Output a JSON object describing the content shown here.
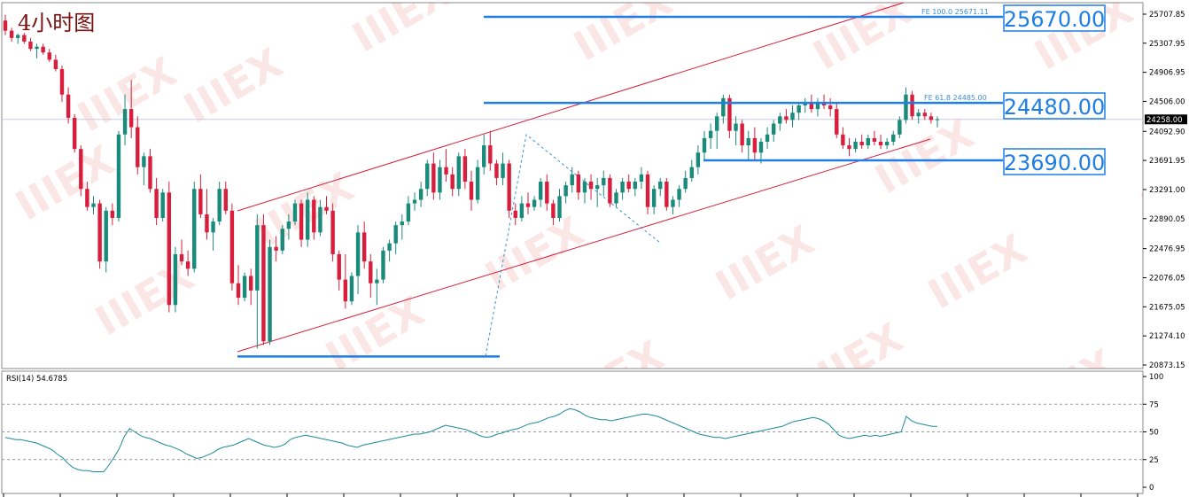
{
  "chart_data": [
    {
      "type": "candlestick",
      "title": "4小时图",
      "colors": {
        "up": "#1a8a7a",
        "down": "#d81e3c",
        "channel": "#d81e3c",
        "level": "#1e7ee6",
        "fib": "#3a8fd6"
      },
      "ylim": [
        20873.15,
        25707.85
      ],
      "y_ticks": [
        "25707.85",
        "25307.95",
        "24906.95",
        "24506.00",
        "24092.90",
        "23691.95",
        "23291.00",
        "22890.05",
        "22476.95",
        "22076.05",
        "21675.05",
        "21274.10",
        "20873.15"
      ],
      "current_price": "24258.00",
      "candles": [
        [
          25620,
          25700,
          25420,
          25480
        ],
        [
          25480,
          25520,
          25330,
          25380
        ],
        [
          25380,
          25440,
          25300,
          25420
        ],
        [
          25420,
          25450,
          25300,
          25330
        ],
        [
          25330,
          25380,
          25200,
          25230
        ],
        [
          25230,
          25300,
          25100,
          25260
        ],
        [
          25260,
          25300,
          25150,
          25180
        ],
        [
          25180,
          25230,
          25050,
          25080
        ],
        [
          25080,
          25150,
          24920,
          24950
        ],
        [
          24950,
          25000,
          24500,
          24600
        ],
        [
          24600,
          24700,
          24200,
          24280
        ],
        [
          24280,
          24330,
          23800,
          23850
        ],
        [
          23850,
          23900,
          23200,
          23300
        ],
        [
          23300,
          23400,
          23000,
          23050
        ],
        [
          23050,
          23200,
          22950,
          23100
        ],
        [
          23100,
          23150,
          22200,
          22300
        ],
        [
          22300,
          23050,
          22150,
          23000
        ],
        [
          23000,
          23100,
          22800,
          22900
        ],
        [
          22900,
          24100,
          22850,
          24050
        ],
        [
          24050,
          24600,
          23900,
          24400
        ],
        [
          24400,
          24800,
          24000,
          24150
        ],
        [
          24150,
          24300,
          23500,
          23600
        ],
        [
          23600,
          23800,
          23350,
          23750
        ],
        [
          23750,
          23850,
          23250,
          23300
        ],
        [
          23300,
          23450,
          22800,
          22900
        ],
        [
          22900,
          23300,
          22850,
          23250
        ],
        [
          23250,
          23400,
          21600,
          21700
        ],
        [
          21700,
          22500,
          21600,
          22400
        ],
        [
          22400,
          22600,
          22250,
          22300
        ],
        [
          22300,
          22450,
          22100,
          22200
        ],
        [
          22200,
          23400,
          22150,
          23300
        ],
        [
          23300,
          23500,
          22900,
          22950
        ],
        [
          22950,
          23300,
          22600,
          22700
        ],
        [
          22700,
          22900,
          22450,
          22850
        ],
        [
          22850,
          23400,
          22800,
          23300
        ],
        [
          23300,
          23400,
          22950,
          23000
        ],
        [
          23000,
          23100,
          21900,
          22000
        ],
        [
          22000,
          22250,
          21700,
          21800
        ],
        [
          21800,
          22150,
          21750,
          22100
        ],
        [
          22100,
          22200,
          21700,
          21900
        ],
        [
          21900,
          22950,
          21100,
          22800
        ],
        [
          22800,
          22950,
          21150,
          21200
        ],
        [
          21200,
          22600,
          21150,
          22500
        ],
        [
          22500,
          22650,
          22300,
          22450
        ],
        [
          22450,
          22800,
          22400,
          22750
        ],
        [
          22750,
          22950,
          22600,
          22850
        ],
        [
          22850,
          23150,
          22800,
          23100
        ],
        [
          23100,
          23150,
          22500,
          22600
        ],
        [
          22600,
          23250,
          22500,
          23150
        ],
        [
          23150,
          23200,
          22600,
          22700
        ],
        [
          22700,
          23150,
          22650,
          23050
        ],
        [
          23050,
          23200,
          22950,
          23000
        ],
        [
          23000,
          23100,
          22300,
          22400
        ],
        [
          22400,
          22450,
          21900,
          22050
        ],
        [
          22050,
          22400,
          21650,
          21750
        ],
        [
          21750,
          22150,
          21700,
          22100
        ],
        [
          22100,
          22800,
          21850,
          22700
        ],
        [
          22700,
          22850,
          22200,
          22300
        ],
        [
          22300,
          22400,
          21800,
          22000
        ],
        [
          22000,
          22200,
          21700,
          22050
        ],
        [
          22050,
          22500,
          22000,
          22450
        ],
        [
          22450,
          22600,
          22300,
          22550
        ],
        [
          22550,
          22850,
          22400,
          22800
        ],
        [
          22800,
          22950,
          22600,
          22850
        ],
        [
          22850,
          23200,
          22800,
          23100
        ],
        [
          23100,
          23250,
          23000,
          23150
        ],
        [
          23150,
          23400,
          23050,
          23300
        ],
        [
          23300,
          23700,
          23200,
          23650
        ],
        [
          23650,
          23800,
          23150,
          23250
        ],
        [
          23250,
          23700,
          23150,
          23600
        ],
        [
          23600,
          23850,
          23400,
          23500
        ],
        [
          23500,
          23600,
          23200,
          23300
        ],
        [
          23300,
          23800,
          23200,
          23750
        ],
        [
          23750,
          23850,
          23300,
          23400
        ],
        [
          23400,
          23550,
          23000,
          23150
        ],
        [
          23150,
          23700,
          23100,
          23600
        ],
        [
          23600,
          24050,
          23500,
          23900
        ],
        [
          23900,
          24100,
          23550,
          23650
        ],
        [
          23650,
          23700,
          23350,
          23450
        ],
        [
          23450,
          23800,
          23350,
          23650
        ],
        [
          23650,
          23700,
          22900,
          23000
        ],
        [
          23000,
          23100,
          22800,
          22900
        ],
        [
          22900,
          23200,
          22850,
          23100
        ],
        [
          23100,
          23250,
          22950,
          23050
        ],
        [
          23050,
          23200,
          23000,
          23150
        ],
        [
          23150,
          23450,
          23050,
          23400
        ],
        [
          23400,
          23500,
          23000,
          23100
        ],
        [
          23100,
          23150,
          22800,
          22900
        ],
        [
          22900,
          23300,
          22850,
          23200
        ],
        [
          23200,
          23400,
          23100,
          23350
        ],
        [
          23350,
          23600,
          23250,
          23500
        ],
        [
          23500,
          23550,
          23150,
          23250
        ],
        [
          23250,
          23450,
          23100,
          23400
        ],
        [
          23400,
          23500,
          23150,
          23300
        ],
        [
          23300,
          23450,
          23050,
          23350
        ],
        [
          23350,
          23550,
          23200,
          23450
        ],
        [
          23450,
          23500,
          23050,
          23100
        ],
        [
          23100,
          23300,
          23050,
          23250
        ],
        [
          23250,
          23450,
          23150,
          23400
        ],
        [
          23400,
          23500,
          23250,
          23300
        ],
        [
          23300,
          23450,
          23200,
          23400
        ],
        [
          23400,
          23600,
          23300,
          23500
        ],
        [
          23500,
          23550,
          22950,
          23050
        ],
        [
          23050,
          23350,
          22950,
          23300
        ],
        [
          23300,
          23450,
          23200,
          23400
        ],
        [
          23400,
          23450,
          23000,
          23050
        ],
        [
          23050,
          23200,
          22950,
          23150
        ],
        [
          23150,
          23350,
          23050,
          23300
        ],
        [
          23300,
          23550,
          23250,
          23450
        ],
        [
          23450,
          23700,
          23400,
          23600
        ],
        [
          23600,
          23900,
          23500,
          23800
        ],
        [
          23800,
          24100,
          23700,
          24000
        ],
        [
          24000,
          24200,
          23850,
          24100
        ],
        [
          24100,
          24350,
          23850,
          24300
        ],
        [
          24300,
          24600,
          24200,
          24550
        ],
        [
          24550,
          24600,
          24000,
          24100
        ],
        [
          24100,
          24300,
          23900,
          24200
        ],
        [
          24200,
          24250,
          23800,
          23900
        ],
        [
          23900,
          24100,
          23700,
          24000
        ],
        [
          24000,
          24150,
          23700,
          23800
        ],
        [
          23800,
          24000,
          23650,
          23950
        ],
        [
          23950,
          24150,
          23850,
          24050
        ],
        [
          24050,
          24250,
          23950,
          24200
        ],
        [
          24200,
          24350,
          24100,
          24300
        ],
        [
          24300,
          24400,
          24200,
          24250
        ],
        [
          24250,
          24450,
          24150,
          24350
        ],
        [
          24350,
          24500,
          24250,
          24450
        ],
        [
          24450,
          24550,
          24350,
          24500
        ],
        [
          24500,
          24600,
          24350,
          24400
        ],
        [
          24400,
          24550,
          24300,
          24500
        ],
        [
          24500,
          24600,
          24400,
          24450
        ],
        [
          24450,
          24550,
          24300,
          24400
        ],
        [
          24400,
          24500,
          24000,
          24050
        ],
        [
          24050,
          24150,
          23850,
          23900
        ],
        [
          23900,
          24000,
          23750,
          23850
        ],
        [
          23850,
          24000,
          23800,
          23950
        ],
        [
          23950,
          24050,
          23850,
          23900
        ],
        [
          23900,
          24050,
          23850,
          24000
        ],
        [
          24000,
          24100,
          23900,
          23950
        ],
        [
          23950,
          24050,
          23850,
          23900
        ],
        [
          23900,
          24000,
          23850,
          23950
        ],
        [
          23950,
          24100,
          23900,
          24050
        ],
        [
          24050,
          24300,
          24000,
          24250
        ],
        [
          24250,
          24700,
          24200,
          24600
        ],
        [
          24600,
          24650,
          24250,
          24300
        ],
        [
          24300,
          24400,
          24200,
          24350
        ],
        [
          24350,
          24400,
          24250,
          24300
        ],
        [
          24300,
          24350,
          24200,
          24250
        ],
        [
          24250,
          24300,
          24150,
          24260
        ]
      ],
      "fib_levels": [
        {
          "label": "FE 100.0  25671.11",
          "value": 25671.11
        },
        {
          "label": "FE 61.8  24485.00",
          "value": 24485.0
        }
      ],
      "price_boxes": [
        "25670.00",
        "24480.00",
        "23690.00"
      ],
      "support_low_value": 20990
    },
    {
      "type": "line",
      "label": "RSI(14) 54.6785",
      "ylim": [
        0,
        100
      ],
      "y_ticks": [
        "100",
        "75",
        "50",
        "25",
        "0"
      ],
      "color": "#1a8a9a",
      "values": [
        45,
        44,
        43,
        43,
        42,
        41,
        40,
        38,
        36,
        34,
        30,
        27,
        22,
        18,
        16,
        15,
        15,
        14,
        14,
        14,
        20,
        27,
        35,
        46,
        53,
        50,
        47,
        45,
        44,
        42,
        40,
        38,
        37,
        35,
        33,
        30,
        28,
        26,
        27,
        29,
        31,
        34,
        36,
        37,
        38,
        40,
        42,
        44,
        42,
        40,
        38,
        37,
        36,
        37,
        39,
        43,
        45,
        46,
        47,
        46,
        45,
        44,
        43,
        42,
        41,
        40,
        38,
        37,
        36,
        38,
        39,
        40,
        41,
        42,
        43,
        44,
        45,
        46,
        47,
        48,
        48,
        49,
        50,
        52,
        54,
        56,
        55,
        54,
        53,
        52,
        50,
        48,
        46,
        45,
        46,
        48,
        49,
        51,
        52,
        53,
        55,
        57,
        58,
        59,
        61,
        63,
        64,
        66,
        69,
        71,
        70,
        68,
        65,
        63,
        62,
        61,
        61,
        60,
        61,
        62,
        63,
        64,
        65,
        66,
        66,
        65,
        64,
        62,
        60,
        58,
        56,
        54,
        52,
        50,
        48,
        47,
        46,
        45,
        45,
        44,
        45,
        46,
        47,
        48,
        49,
        50,
        51,
        52,
        53,
        54,
        55,
        57,
        59,
        60,
        61,
        62,
        63,
        62,
        60,
        57,
        52,
        47,
        45,
        44,
        45,
        46,
        47,
        46,
        47,
        46,
        47,
        48,
        49,
        50,
        64,
        60,
        58,
        57,
        56,
        55,
        55
      ]
    }
  ]
}
